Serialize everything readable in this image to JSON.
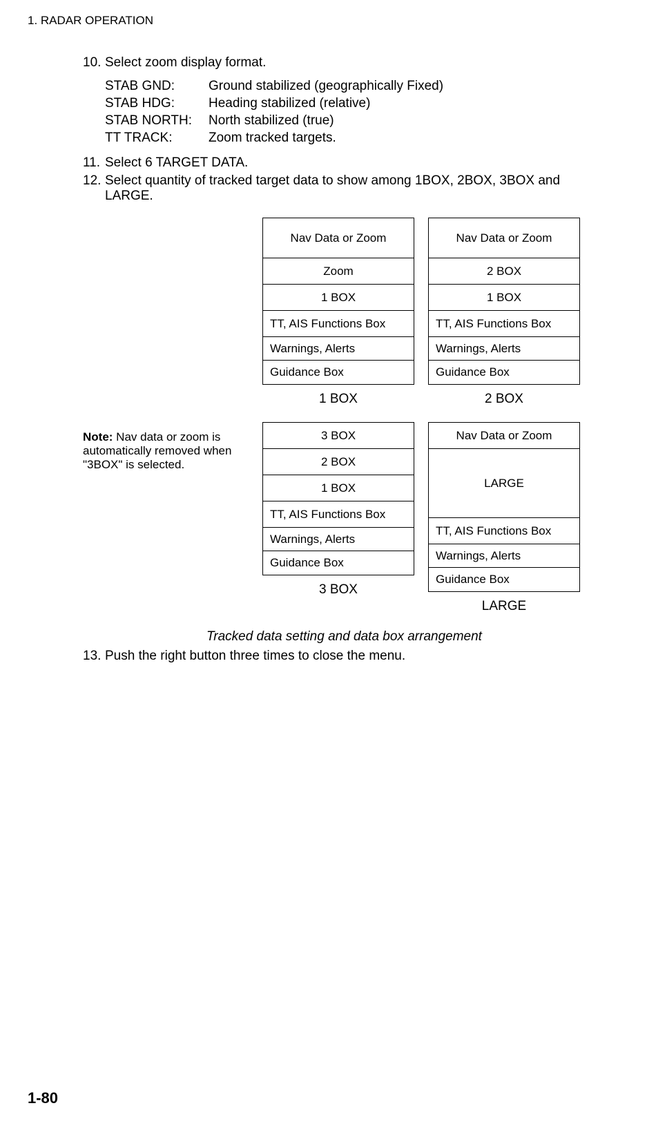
{
  "header": "1. RADAR OPERATION",
  "steps": {
    "s10": {
      "num": "10.",
      "text": "Select zoom display format."
    },
    "s11": {
      "num": "11.",
      "text": "Select 6 TARGET DATA."
    },
    "s12": {
      "num": "12.",
      "text": "Select quantity of tracked target data to show among 1BOX, 2BOX, 3BOX and LARGE."
    },
    "s13": {
      "num": "13.",
      "text": "Push the right button three times to close the menu."
    }
  },
  "definitions": {
    "d1": {
      "label": "STAB GND:",
      "value": "Ground stabilized (geographically Fixed)"
    },
    "d2": {
      "label": "STAB HDG:",
      "value": "Heading stabilized (relative)"
    },
    "d3": {
      "label": "STAB NORTH:",
      "value": "North stabilized (true)"
    },
    "d4": {
      "label": "TT TRACK:",
      "value": "Zoom tracked targets."
    }
  },
  "note": {
    "label": "Note:",
    "text": " Nav data or zoom is automatically removed when \"3BOX\" is selected."
  },
  "diagram": {
    "box1": {
      "r1": "Nav Data or Zoom",
      "r2": "Zoom",
      "r3": "1 BOX",
      "r4": "TT, AIS Functions Box",
      "r5": "Warnings, Alerts",
      "r6": "Guidance Box",
      "label": "1 BOX"
    },
    "box2": {
      "r1": "Nav Data or Zoom",
      "r2": "2 BOX",
      "r3": "1 BOX",
      "r4": "TT, AIS Functions Box",
      "r5": "Warnings, Alerts",
      "r6": "Guidance Box",
      "label": "2 BOX"
    },
    "box3": {
      "r1": "3 BOX",
      "r2": "2 BOX",
      "r3": "1 BOX",
      "r4": "TT, AIS Functions Box",
      "r5": "Warnings, Alerts",
      "r6": "Guidance Box",
      "label": "3 BOX"
    },
    "box4": {
      "r1": "Nav Data or Zoom",
      "r2": "LARGE",
      "r4": "TT, AIS Functions Box",
      "r5": "Warnings, Alerts",
      "r6": "Guidance Box",
      "label": "LARGE"
    }
  },
  "caption": "Tracked data setting and data box arrangement",
  "pageNumber": "1-80"
}
